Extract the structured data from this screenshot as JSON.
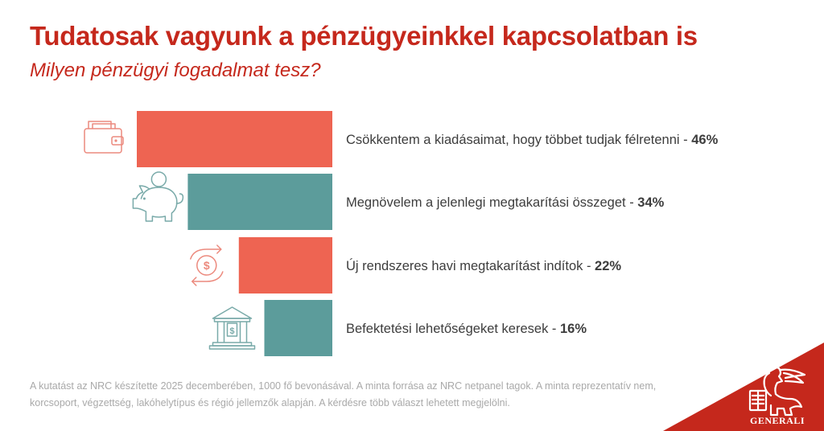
{
  "title": "Tudatosak vagyunk a pénzügyeinkkel kapcsolatban is",
  "subtitle": "Milyen pénzügyi fogadalmat tesz?",
  "colors": {
    "accent": "#c5281c",
    "coral": "#ee6452",
    "teal": "#5c9c9b",
    "icon": "#ec8a7e",
    "iconTeal": "#79aaa9"
  },
  "chart_data": {
    "type": "bar",
    "orientation": "horizontal",
    "categories": [
      "Csökkentem a kiadásaimat, hogy többet tudjak félretenni",
      "Megnövelem a jelenlegi megtakarítási összeget",
      "Új rendszeres havi megtakarítást indítok",
      "Befektetési lehetőségeket keresek"
    ],
    "values": [
      46,
      34,
      22,
      16
    ],
    "value_labels": [
      "46%",
      "34%",
      "22%",
      "16%"
    ],
    "bar_colors": [
      "#ee6452",
      "#5c9c9b",
      "#ee6452",
      "#5c9c9b"
    ],
    "icons": [
      "wallet-icon",
      "piggy-bank-icon",
      "recurring-payment-icon",
      "bank-icon"
    ],
    "xlim": [
      0,
      46
    ]
  },
  "footnote": "A kutatást az NRC készítette 2025 decemberében, 1000 fő bevonásával. A minta forrása az NRC netpanel tagok. A minta reprezentatív nem, korcsoport, végzettség, lakóhelytípus és régió jellemzők alapján. A kérdésre több választ lehetett megjelölni.",
  "logo_text": "GENERALI"
}
